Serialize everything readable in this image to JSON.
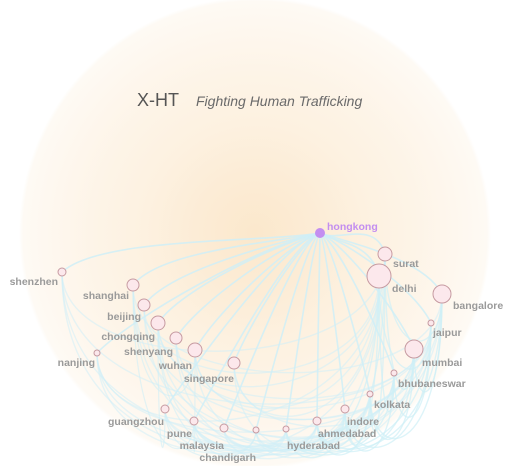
{
  "brand": {
    "name": "X-HT",
    "tagline": "Fighting Human Trafficking"
  },
  "colors": {
    "edge": "#cfeff7",
    "node_fill": "#fce8ec",
    "node_stroke": "#c69aa1",
    "active_fill": "#c38ef0",
    "active_label": "#c38ef0",
    "label": "#9a9a9a"
  },
  "hub": "hongkong",
  "nodes": [
    {
      "id": "hongkong",
      "label": "hongkong",
      "active": true
    },
    {
      "id": "surat",
      "label": "surat"
    },
    {
      "id": "delhi",
      "label": "delhi"
    },
    {
      "id": "bangalore",
      "label": "bangalore"
    },
    {
      "id": "jaipur",
      "label": "jaipur"
    },
    {
      "id": "mumbai",
      "label": "mumbai"
    },
    {
      "id": "bhubaneswar",
      "label": "bhubaneswar"
    },
    {
      "id": "kolkata",
      "label": "kolkata"
    },
    {
      "id": "indore",
      "label": "indore"
    },
    {
      "id": "ahmedabad",
      "label": "ahmedabad"
    },
    {
      "id": "hyderabad",
      "label": "hyderabad"
    },
    {
      "id": "chandigarh",
      "label": "chandigarh"
    },
    {
      "id": "malaysia",
      "label": "malaysia"
    },
    {
      "id": "pune",
      "label": "pune"
    },
    {
      "id": "guangzhou",
      "label": "guangzhou"
    },
    {
      "id": "singapore",
      "label": "singapore"
    },
    {
      "id": "wuhan",
      "label": "wuhan"
    },
    {
      "id": "shenyang",
      "label": "shenyang"
    },
    {
      "id": "chongqing",
      "label": "chongqing"
    },
    {
      "id": "beijing",
      "label": "beijing"
    },
    {
      "id": "shanghai",
      "label": "shanghai"
    },
    {
      "id": "nanjing",
      "label": "nanjing"
    },
    {
      "id": "shenzhen",
      "label": "shenzhen"
    }
  ]
}
